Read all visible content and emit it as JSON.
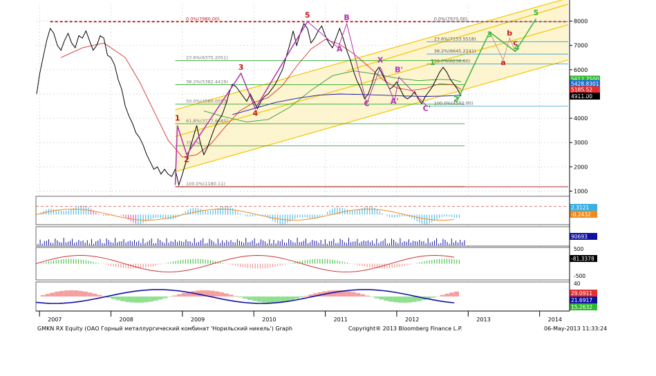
{
  "footer": {
    "title": "GMKN RX Equity (ОАО Горный металлургический комбинат 'Норильский никель') Graph",
    "copyright": "Copyright® 2013 Bloomberg Finance L.P.",
    "timestamp": "06-May-2013 11:33:24"
  },
  "colors": {
    "price": "#000000",
    "ma_red": "#d03030",
    "ma_green": "#2e9d2e",
    "ma_blue": "#1010a0",
    "channel_fill": "#fdf2c8",
    "channel_line": "#f5c400",
    "fib_line": "#26a826",
    "wave_red": "#c01818",
    "wave_purple": "#b030b0",
    "wave_green": "#3cb43c"
  },
  "chart_data": {
    "type": "line",
    "price_axis": {
      "ticks": [
        "1000",
        "2000",
        "3000",
        "4000",
        "5000",
        "6000",
        "7000",
        "8000"
      ],
      "ylim": [
        900,
        8700
      ]
    },
    "x_axis": {
      "ticks": [
        "2007",
        "2008",
        "2009",
        "2010",
        "2011",
        "2012",
        "2013",
        "2014"
      ],
      "xlim": [
        2006.95,
        2014.4
      ]
    },
    "price_series": {
      "x": [
        2006.96,
        2007.0,
        2007.05,
        2007.1,
        2007.15,
        2007.2,
        2007.25,
        2007.3,
        2007.35,
        2007.4,
        2007.45,
        2007.5,
        2007.55,
        2007.6,
        2007.65,
        2007.7,
        2007.75,
        2007.8,
        2007.85,
        2007.9,
        2007.95,
        2008.0,
        2008.05,
        2008.1,
        2008.15,
        2008.2,
        2008.25,
        2008.3,
        2008.35,
        2008.4,
        2008.45,
        2008.5,
        2008.55,
        2008.6,
        2008.65,
        2008.7,
        2008.75,
        2008.8,
        2008.85,
        2008.9,
        2008.95,
        2009.0,
        2009.05,
        2009.1,
        2009.15,
        2009.2,
        2009.25,
        2009.3,
        2009.35,
        2009.4,
        2009.45,
        2009.5,
        2009.55,
        2009.6,
        2009.65,
        2009.7,
        2009.75,
        2009.8,
        2009.85,
        2009.9,
        2009.95,
        2010.0,
        2010.05,
        2010.1,
        2010.15,
        2010.2,
        2010.25,
        2010.3,
        2010.35,
        2010.4,
        2010.45,
        2010.5,
        2010.55,
        2010.6,
        2010.65,
        2010.7,
        2010.75,
        2010.8,
        2010.85,
        2010.9,
        2010.95,
        2011.0,
        2011.05,
        2011.1,
        2011.15,
        2011.2,
        2011.25,
        2011.3,
        2011.35,
        2011.4,
        2011.45,
        2011.5,
        2011.55,
        2011.6,
        2011.65,
        2011.7,
        2011.75,
        2011.8,
        2011.85,
        2011.9,
        2011.95,
        2012.0,
        2012.05,
        2012.1,
        2012.15,
        2012.2,
        2012.25,
        2012.3,
        2012.35,
        2012.4,
        2012.45,
        2012.5,
        2012.55,
        2012.6,
        2012.65,
        2012.7,
        2012.75,
        2012.8,
        2012.85,
        2012.9
      ],
      "values": [
        5000,
        5800,
        6500,
        7200,
        7700,
        7500,
        7000,
        6800,
        7200,
        7500,
        7100,
        6900,
        7400,
        7300,
        7600,
        7200,
        6800,
        7000,
        7400,
        7300,
        6600,
        6500,
        6200,
        5600,
        5200,
        4500,
        4100,
        3800,
        3400,
        3200,
        2900,
        2500,
        2200,
        1900,
        2000,
        1700,
        1900,
        1700,
        1600,
        1900,
        1250,
        1700,
        2200,
        2700,
        3200,
        3700,
        3000,
        2500,
        2800,
        3200,
        3600,
        3900,
        4100,
        4500,
        5000,
        5400,
        5300,
        5100,
        4900,
        4700,
        5000,
        4700,
        4400,
        4700,
        4900,
        5000,
        5200,
        5400,
        5700,
        6000,
        6500,
        7000,
        7600,
        7000,
        7500,
        7900,
        7700,
        7100,
        7300,
        7600,
        7800,
        7400,
        7100,
        6900,
        7300,
        7700,
        7300,
        6800,
        6400,
        5900,
        5500,
        5200,
        4800,
        5000,
        5400,
        5900,
        6100,
        5800,
        5500,
        5200,
        5300,
        5500,
        5200,
        4900,
        4800,
        4900,
        5100,
        4800,
        4600,
        4900,
        5100,
        5300,
        5600,
        5900,
        6100,
        5900,
        5600,
        5400,
        5200,
        4911
      ],
      "last_label": "4911.00"
    },
    "moving_averages": [
      {
        "x": [
          2007.3,
          2007.6,
          2007.9,
          2008.2,
          2008.4,
          2008.6,
          2008.8,
          2009.0,
          2009.2,
          2009.4,
          2009.6,
          2009.8,
          2010.0,
          2010.2,
          2010.4,
          2010.6,
          2010.8,
          2011.0,
          2011.2,
          2011.4,
          2011.6,
          2011.8,
          2012.0,
          2012.2,
          2012.4,
          2012.6,
          2012.8,
          2012.9
        ],
        "values": [
          6500,
          6900,
          7100,
          6500,
          5500,
          4300,
          3100,
          2400,
          2500,
          2950,
          3650,
          4300,
          4650,
          4850,
          5350,
          6150,
          6850,
          7250,
          7050,
          6650,
          6150,
          5600,
          5250,
          5150,
          5220,
          5420,
          5380,
          5186
        ]
      },
      {
        "x": [
          2009.3,
          2009.6,
          2009.9,
          2010.2,
          2010.5,
          2010.8,
          2011.1,
          2011.4,
          2011.7,
          2012.0,
          2012.3,
          2012.6,
          2012.8,
          2012.9
        ],
        "values": [
          4300,
          4050,
          3850,
          3950,
          4450,
          5150,
          5750,
          5950,
          5820,
          5650,
          5550,
          5600,
          5580,
          5500
        ]
      },
      {
        "x": [
          2009.7,
          2010.0,
          2010.3,
          2010.6,
          2010.9,
          2011.2,
          2011.5,
          2011.8,
          2012.1,
          2012.4,
          2012.7,
          2012.9
        ],
        "values": [
          4150,
          4400,
          4650,
          4820,
          4950,
          5000,
          4980,
          4950,
          4920,
          4900,
          4920,
          4950
        ]
      }
    ],
    "price_labels": [
      "5612.7500",
      "5428.8301",
      "5185.52",
      "4911.00"
    ],
    "price_label_values": [
      5612.75,
      5428.83,
      5185.52,
      4911.0
    ],
    "fib_left": [
      {
        "label": "0.0%(7980.00)",
        "value": 7980
      },
      {
        "label": "23.6%(6375.2051)",
        "value": 6375
      },
      {
        "label": "38.2%(5382.4419)",
        "value": 5382
      },
      {
        "label": "50.0%(4580.0553)",
        "value": 4580
      },
      {
        "label": "61.8%(3777.6685)",
        "value": 3778
      },
      {
        "label": "75.2%",
        "value": 2866
      },
      {
        "label": "100.0%(1180.11)",
        "value": 1180
      }
    ],
    "fib_right": [
      {
        "label": "0.0%(7970.00)",
        "value": 7970
      },
      {
        "label": "23.6%(7153.5518)",
        "value": 7154
      },
      {
        "label": "38.2%(6645.2241)",
        "value": 6645
      },
      {
        "label": "50.0%(6236.00)",
        "value": 6236
      },
      {
        "label": "100.0%(4502.00)",
        "value": 4502
      }
    ],
    "wave_labels": [
      {
        "text": "1",
        "x": 2008.93,
        "y": 3900,
        "color": "wave_red"
      },
      {
        "text": "2",
        "x": 2009.06,
        "y": 2200,
        "color": "wave_red"
      },
      {
        "text": "3",
        "x": 2009.82,
        "y": 6000,
        "color": "wave_red"
      },
      {
        "text": "4",
        "x": 2010.02,
        "y": 4100,
        "color": "wave_red"
      },
      {
        "text": "5",
        "x": 2010.75,
        "y": 8150,
        "color": "wave_red"
      },
      {
        "text": "A",
        "x": 2011.2,
        "y": 6750,
        "color": "wave_purple"
      },
      {
        "text": "B",
        "x": 2011.3,
        "y": 8050,
        "color": "wave_purple"
      },
      {
        "text": "C",
        "x": 2011.58,
        "y": 4500,
        "color": "wave_purple"
      },
      {
        "text": "X",
        "x": 2011.77,
        "y": 6300,
        "color": "wave_purple"
      },
      {
        "text": "A'",
        "x": 2011.97,
        "y": 4600,
        "color": "wave_purple"
      },
      {
        "text": "B'",
        "x": 2012.03,
        "y": 5900,
        "color": "wave_purple"
      },
      {
        "text": "C'",
        "x": 2012.42,
        "y": 4300,
        "color": "wave_purple"
      },
      {
        "text": "1",
        "x": 2012.5,
        "y": 6200,
        "color": "wave_green"
      },
      {
        "text": "2",
        "x": 2012.83,
        "y": 4680,
        "color": "wave_green"
      },
      {
        "text": "3",
        "x": 2013.3,
        "y": 7350,
        "color": "wave_green"
      },
      {
        "text": "4",
        "x": 2013.68,
        "y": 6800,
        "color": "wave_green"
      },
      {
        "text": "5",
        "x": 2013.95,
        "y": 8250,
        "color": "wave_green"
      },
      {
        "text": "a",
        "x": 2013.49,
        "y": 6200,
        "color": "wave_red"
      },
      {
        "text": "b",
        "x": 2013.58,
        "y": 7400,
        "color": "wave_red"
      },
      {
        "text": "c",
        "x": 2013.66,
        "y": 7000,
        "color": "wave_red"
      }
    ],
    "indicator_panels": [
      {
        "name": "panel-1",
        "ticks": [],
        "labels": [
          "2.3121",
          "-0.2432"
        ],
        "label_colors": [
          "#3ab0e0",
          "#f08a1a"
        ]
      },
      {
        "name": "panel-2",
        "ticks": [],
        "labels": [
          "90693"
        ],
        "label_colors": [
          "#1010a0"
        ]
      },
      {
        "name": "panel-3",
        "ticks": [
          "500",
          "-500"
        ],
        "labels": [
          "-81.3378"
        ],
        "label_colors": [
          "#ffffff"
        ]
      },
      {
        "name": "panel-4",
        "ticks": [
          "40"
        ],
        "labels": [
          "29.0911",
          "21.6917",
          "15.2632"
        ],
        "label_colors": [
          "#e03030",
          "#1010a0",
          "#2eb82e"
        ]
      }
    ]
  }
}
